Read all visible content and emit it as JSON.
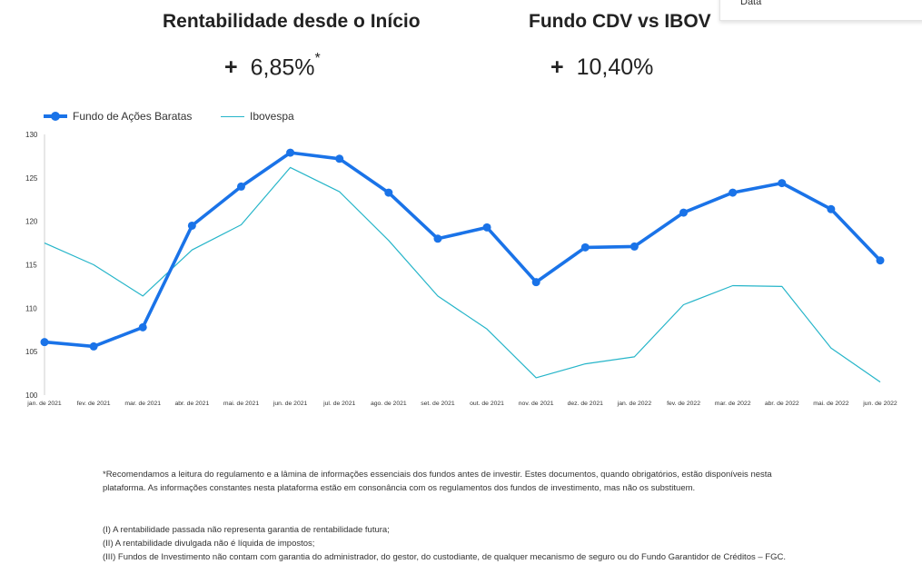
{
  "kpis": [
    {
      "title": "Rentabilidade desde o Início",
      "sign": "+",
      "value": "6,85%",
      "suffix": "*"
    },
    {
      "title": "Fundo CDV vs IBOV",
      "sign": "+",
      "value": "10,40%",
      "suffix": ""
    }
  ],
  "dropdown": {
    "label": "Data"
  },
  "chart_data": {
    "type": "line",
    "categories": [
      "jan. de 2021",
      "fev. de 2021",
      "mar. de 2021",
      "abr. de 2021",
      "mai. de 2021",
      "jun. de 2021",
      "jul. de 2021",
      "ago. de 2021",
      "set. de 2021",
      "out. de 2021",
      "nov. de 2021",
      "dez. de 2021",
      "jan. de 2022",
      "fev. de 2022",
      "mar. de 2022",
      "abr. de 2022",
      "mai. de 2022",
      "jun. de 2022"
    ],
    "series": [
      {
        "name": "Fundo de Ações Baratas",
        "color": "#1a73e8",
        "markers": true,
        "values": [
          106.1,
          105.6,
          107.8,
          119.5,
          124.0,
          127.9,
          127.2,
          123.3,
          118.0,
          119.3,
          113.0,
          117.0,
          117.1,
          121.0,
          123.3,
          124.4,
          121.4,
          115.5
        ]
      },
      {
        "name": "Ibovespa",
        "color": "#26b5c9",
        "markers": false,
        "values": [
          117.5,
          115.0,
          111.4,
          116.7,
          119.6,
          126.2,
          123.4,
          117.8,
          111.4,
          107.6,
          102.0,
          103.6,
          104.4,
          110.4,
          112.6,
          112.5,
          105.4,
          101.5
        ]
      }
    ],
    "yticks": [
      100,
      105,
      110,
      115,
      120,
      125,
      130
    ],
    "ylim": [
      100,
      130
    ],
    "legend": "top-left"
  },
  "footnotes": {
    "main": "*Recomendamos a leitura do regulamento e a lâmina de informações essenciais dos fundos antes de investir. Estes documentos, quando obrigatórios, estão disponíveis nesta plataforma. As informações constantes nesta plataforma estão em consonância com os regulamentos dos fundos de investimento, mas não os substituem.",
    "items": [
      "(I) A rentabilidade passada não representa garantia de rentabilidade futura;",
      "(II) A rentabilidade divulgada não é líquida de impostos;",
      "(III) Fundos de Investimento não contam com garantia do administrador, do gestor, do custodiante, de qualquer mecanismo de seguro ou do Fundo Garantidor de Créditos – FGC."
    ]
  }
}
